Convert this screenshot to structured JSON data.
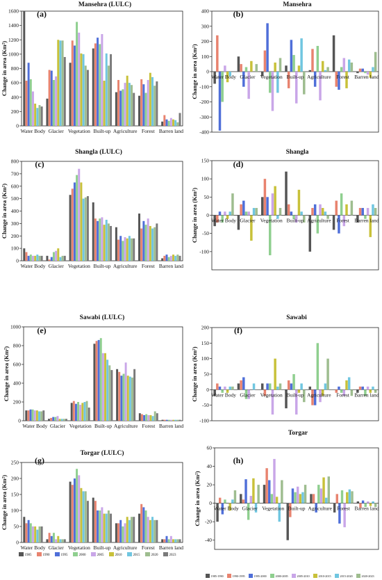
{
  "palette": [
    "#555555",
    "#e8836f",
    "#4f6fd9",
    "#8fcf8f",
    "#c9a6e8",
    "#c8c13a",
    "#70c6e0",
    "#9ebd8f",
    "#7a7a7a",
    "#c7a25a"
  ],
  "panel_layout_order": [
    "a",
    "b",
    "c",
    "d",
    "e",
    "f",
    "g",
    "h"
  ],
  "legend_bottom_left": [
    "1985",
    "1990",
    "1995",
    "2000",
    "2005",
    "2010",
    "2015",
    "2020",
    "2023"
  ],
  "legend_bottom_right": [
    "1985-1990",
    "1990-1995",
    "1995-2000",
    "2000-2005",
    "2005-2010",
    "2010-2015",
    "2015-2020",
    "2020-2023"
  ],
  "chart_data": [
    {
      "panel": "(a)",
      "title": "Mansehra (LULC)",
      "type": "bar",
      "ylabel": "Change in area (Km²)",
      "ylim": [
        0,
        1600
      ],
      "yticks": [
        0,
        200,
        400,
        600,
        800,
        1000,
        1200,
        1400,
        1600
      ],
      "categories": [
        "Water Body",
        "Glacier",
        "Vegetation",
        "Built-up",
        "Agriculture",
        "Forest",
        "Barren land"
      ],
      "series": [
        {
          "name": "1985",
          "values": [
            1600,
            380,
            880,
            1080,
            470,
            420,
            60
          ]
        },
        {
          "name": "1990",
          "values": [
            630,
            780,
            1190,
            1150,
            640,
            650,
            150
          ]
        },
        {
          "name": "1995",
          "values": [
            880,
            770,
            1120,
            1230,
            490,
            580,
            90
          ]
        },
        {
          "name": "2000",
          "values": [
            650,
            640,
            1450,
            1140,
            510,
            460,
            70
          ]
        },
        {
          "name": "2005",
          "values": [
            480,
            690,
            1300,
            1280,
            600,
            640,
            110
          ]
        },
        {
          "name": "2010",
          "values": [
            310,
            1200,
            1010,
            630,
            700,
            740,
            90
          ]
        },
        {
          "name": "2015",
          "values": [
            250,
            1190,
            1000,
            1010,
            600,
            680,
            80
          ]
        },
        {
          "name": "2020",
          "values": [
            290,
            1190,
            840,
            840,
            570,
            560,
            50
          ]
        },
        {
          "name": "2023",
          "values": [
            270,
            960,
            780,
            1000,
            460,
            620,
            180
          ]
        }
      ]
    },
    {
      "panel": "(b)",
      "title": "Mansehra",
      "type": "bar",
      "ylabel": "Change in area (Km²)",
      "ylim": [
        -400,
        400
      ],
      "yticks": [
        -400,
        -300,
        -200,
        -100,
        0,
        100,
        200,
        300,
        400
      ],
      "categories": [
        "Water Body",
        "Glacier",
        "Vegetation",
        "Built-up",
        "Agriculture",
        "Forest",
        "Barren land"
      ],
      "series": [
        {
          "name": "1985-1990",
          "values": [
            -80,
            100,
            -30,
            40,
            10,
            240,
            -10
          ]
        },
        {
          "name": "1990-1995",
          "values": [
            240,
            50,
            140,
            -110,
            150,
            -100,
            20
          ]
        },
        {
          "name": "1995-2000",
          "values": [
            -390,
            -100,
            320,
            210,
            -100,
            -120,
            20
          ]
        },
        {
          "name": "2000-2005",
          "values": [
            -200,
            30,
            -140,
            110,
            170,
            30,
            -10
          ]
        },
        {
          "name": "2005-2010",
          "values": [
            40,
            -180,
            -260,
            -210,
            -190,
            90,
            -20
          ]
        },
        {
          "name": "2010-2015",
          "values": [
            -70,
            70,
            60,
            40,
            70,
            -110,
            -40
          ]
        },
        {
          "name": "2015-2020",
          "values": [
            -30,
            0,
            -140,
            220,
            10,
            80,
            30
          ]
        },
        {
          "name": "2020-2023",
          "values": [
            0,
            50,
            90,
            -150,
            30,
            60,
            130
          ]
        }
      ]
    },
    {
      "panel": "(c)",
      "title": "Shangla (LULC)",
      "type": "bar",
      "ylabel": "Change in area (Km²)",
      "ylim": [
        0,
        800
      ],
      "yticks": [
        0,
        100,
        200,
        300,
        400,
        500,
        600,
        700,
        800
      ],
      "categories": [
        "Water Body",
        "Glacier",
        "Vegetation",
        "Built-up",
        "Agriculture",
        "Forest",
        "Barren land"
      ],
      "series": [
        {
          "name": "1985",
          "values": [
            100,
            40,
            530,
            470,
            270,
            380,
            20
          ]
        },
        {
          "name": "1990",
          "values": [
            70,
            10,
            580,
            340,
            170,
            260,
            40
          ]
        },
        {
          "name": "1995",
          "values": [
            40,
            30,
            630,
            320,
            200,
            320,
            50
          ]
        },
        {
          "name": "2000",
          "values": [
            50,
            70,
            690,
            340,
            160,
            290,
            30
          ]
        },
        {
          "name": "2005",
          "values": [
            40,
            80,
            740,
            350,
            190,
            340,
            40
          ]
        },
        {
          "name": "2010",
          "values": [
            40,
            100,
            630,
            290,
            180,
            280,
            50
          ]
        },
        {
          "name": "2015",
          "values": [
            50,
            30,
            500,
            330,
            200,
            260,
            40
          ]
        },
        {
          "name": "2020",
          "values": [
            40,
            40,
            510,
            300,
            180,
            270,
            50
          ]
        },
        {
          "name": "2023",
          "values": [
            40,
            40,
            520,
            280,
            180,
            300,
            40
          ]
        }
      ]
    },
    {
      "panel": "(d)",
      "title": "Shangla",
      "type": "bar",
      "ylabel": "Change in area (Km²)",
      "ylim": [
        -150,
        150
      ],
      "yticks": [
        -100,
        -50,
        0,
        50,
        100,
        150
      ],
      "categories": [
        "Water Body",
        "Glacier",
        "Vegetation",
        "Built-up",
        "Agriculture",
        "Forest",
        "Barren land"
      ],
      "series": [
        {
          "name": "1985-1990",
          "values": [
            -30,
            -40,
            50,
            120,
            -100,
            -40,
            -20
          ]
        },
        {
          "name": "1990-1995",
          "values": [
            -20,
            30,
            100,
            30,
            20,
            40,
            20
          ]
        },
        {
          "name": "1995-2000",
          "values": [
            10,
            40,
            50,
            10,
            30,
            -50,
            20
          ]
        },
        {
          "name": "2000-2005",
          "values": [
            -20,
            10,
            -110,
            -10,
            -50,
            60,
            -10
          ]
        },
        {
          "name": "2005-2010",
          "values": [
            10,
            10,
            60,
            -20,
            30,
            -30,
            20
          ]
        },
        {
          "name": "2010-2015",
          "values": [
            -10,
            -70,
            80,
            70,
            20,
            30,
            -60
          ]
        },
        {
          "name": "2015-2020",
          "values": [
            10,
            20,
            -10,
            10,
            10,
            0,
            30
          ]
        },
        {
          "name": "2020-2023",
          "values": [
            60,
            20,
            20,
            -20,
            -10,
            40,
            20
          ]
        }
      ]
    },
    {
      "panel": "(e)",
      "title": "Sawabi (LULC)",
      "type": "bar",
      "ylabel": "Change in area (Km²)",
      "ylim": [
        0,
        1000
      ],
      "yticks": [
        0,
        200,
        400,
        600,
        800,
        1000
      ],
      "categories": [
        "Water Body",
        "Glacier",
        "Vegetation",
        "Built-up",
        "Agriculture",
        "Forest",
        "Barren land"
      ],
      "series": [
        {
          "name": "1985",
          "values": [
            110,
            20,
            190,
            820,
            550,
            80,
            10
          ]
        },
        {
          "name": "1990",
          "values": [
            110,
            30,
            210,
            850,
            520,
            70,
            10
          ]
        },
        {
          "name": "1995",
          "values": [
            120,
            40,
            180,
            860,
            480,
            60,
            10
          ]
        },
        {
          "name": "2000",
          "values": [
            120,
            40,
            200,
            880,
            500,
            70,
            10
          ]
        },
        {
          "name": "2005",
          "values": [
            110,
            50,
            170,
            720,
            620,
            60,
            10
          ]
        },
        {
          "name": "2010",
          "values": [
            110,
            20,
            190,
            720,
            480,
            60,
            10
          ]
        },
        {
          "name": "2015",
          "values": [
            100,
            20,
            200,
            650,
            470,
            50,
            10
          ]
        },
        {
          "name": "2020",
          "values": [
            100,
            20,
            210,
            590,
            460,
            100,
            10
          ]
        },
        {
          "name": "2023",
          "values": [
            110,
            20,
            140,
            540,
            550,
            80,
            10
          ]
        }
      ]
    },
    {
      "panel": "(f)",
      "title": "Sawabi",
      "type": "bar",
      "ylabel": "Change in area (Km²)",
      "ylim": [
        -100,
        200
      ],
      "yticks": [
        -100,
        -50,
        0,
        50,
        100,
        150,
        200
      ],
      "categories": [
        "Water Body",
        "Glacier",
        "Vegetation",
        "Built-up",
        "Agriculture",
        "Forest",
        "Barren land"
      ],
      "series": [
        {
          "name": "1985-1990",
          "values": [
            -20,
            20,
            20,
            -60,
            10,
            0,
            -10
          ]
        },
        {
          "name": "1990-1995",
          "values": [
            20,
            30,
            -20,
            30,
            -50,
            -10,
            10
          ]
        },
        {
          "name": "1995-2000",
          "values": [
            10,
            40,
            20,
            20,
            -50,
            10,
            10
          ]
        },
        {
          "name": "2000-2005",
          "values": [
            -10,
            -30,
            20,
            50,
            150,
            -10,
            -20
          ]
        },
        {
          "name": "2005-2010",
          "values": [
            10,
            -30,
            -80,
            -80,
            -40,
            -20,
            10
          ]
        },
        {
          "name": "2010-2015",
          "values": [
            -10,
            0,
            100,
            -10,
            -20,
            30,
            -10
          ]
        },
        {
          "name": "2015-2020",
          "values": [
            10,
            20,
            10,
            20,
            20,
            40,
            10
          ]
        },
        {
          "name": "2020-2023",
          "values": [
            10,
            0,
            20,
            -40,
            100,
            -20,
            -10
          ]
        }
      ]
    },
    {
      "panel": "(g)",
      "title": "Torgar (LULC)",
      "type": "bar",
      "ylabel": "Change in area (Km²)",
      "ylim": [
        0,
        250
      ],
      "yticks": [
        0,
        50,
        100,
        150,
        200,
        250
      ],
      "categories": [
        "Water Body",
        "Glacier",
        "Vegetation",
        "Built-up",
        "Agriculture",
        "Forest",
        "Barren land"
      ],
      "series": [
        {
          "name": "1985",
          "values": [
            80,
            10,
            190,
            140,
            60,
            90,
            10
          ]
        },
        {
          "name": "1990",
          "values": [
            60,
            30,
            180,
            130,
            60,
            120,
            10
          ]
        },
        {
          "name": "1995",
          "values": [
            70,
            20,
            200,
            100,
            70,
            110,
            20
          ]
        },
        {
          "name": "2000",
          "values": [
            60,
            30,
            230,
            100,
            50,
            100,
            10
          ]
        },
        {
          "name": "2005",
          "values": [
            50,
            10,
            210,
            110,
            60,
            80,
            20
          ]
        },
        {
          "name": "2010",
          "values": [
            50,
            20,
            170,
            90,
            80,
            70,
            10
          ]
        },
        {
          "name": "2015",
          "values": [
            40,
            10,
            160,
            90,
            70,
            80,
            10
          ]
        },
        {
          "name": "2020",
          "values": [
            50,
            10,
            160,
            100,
            80,
            70,
            10
          ]
        },
        {
          "name": "2023",
          "values": [
            50,
            10,
            130,
            90,
            80,
            70,
            10
          ]
        }
      ]
    },
    {
      "panel": "(h)",
      "title": "Torgar",
      "type": "bar",
      "ylabel": "Change in area (Km²)",
      "ylim": [
        -50,
        60
      ],
      "yticks": [
        -40,
        -20,
        0,
        20,
        40,
        60
      ],
      "categories": [
        "Water Body",
        "Glacier",
        "Vegetation",
        "Built-up",
        "Agriculture",
        "Forest",
        "Barren land"
      ],
      "series": [
        {
          "name": "1985-1990",
          "values": [
            -20,
            10,
            20,
            -40,
            10,
            -10,
            2
          ]
        },
        {
          "name": "1990-1995",
          "values": [
            6,
            4,
            38,
            -15,
            10,
            10,
            -5
          ]
        },
        {
          "name": "1995-2000",
          "values": [
            -12,
            26,
            25,
            16,
            -10,
            -22,
            3
          ]
        },
        {
          "name": "2000-2005",
          "values": [
            4,
            -18,
            10,
            12,
            20,
            14,
            -4
          ]
        },
        {
          "name": "2005-2010",
          "values": [
            0,
            8,
            48,
            18,
            16,
            -26,
            2
          ]
        },
        {
          "name": "2010-2015",
          "values": [
            -8,
            27,
            7,
            10,
            28,
            12,
            -3
          ]
        },
        {
          "name": "2015-2020",
          "values": [
            4,
            -10,
            -20,
            12,
            6,
            15,
            2
          ]
        },
        {
          "name": "2020-2023",
          "values": [
            14,
            20,
            25,
            20,
            29,
            13,
            -4
          ]
        }
      ]
    }
  ]
}
